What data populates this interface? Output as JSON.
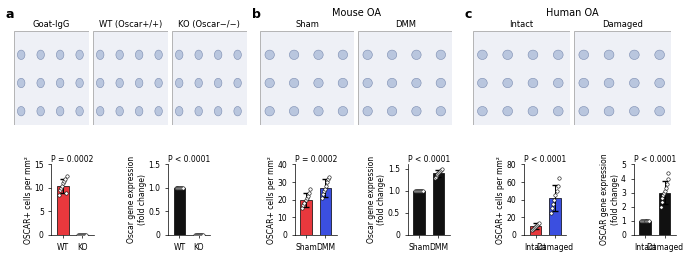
{
  "panels": [
    {
      "label": "a",
      "images": [
        "Goat-IgG",
        "WT (Oscar+/+)",
        "KO (Oscar−/−)"
      ]
    },
    {
      "label": "b",
      "title": "Mouse OA",
      "images": [
        "Sham",
        "DMM"
      ]
    },
    {
      "label": "c",
      "title": "Human OA",
      "images": [
        "Intact",
        "Damaged"
      ]
    }
  ],
  "chart_data": [
    {
      "type": "bar",
      "title": "P = 0.0002",
      "ylabel": "OSCAR+ cells per mm²",
      "categories": [
        "WT",
        "KO"
      ],
      "values": [
        10.5,
        0
      ],
      "errors": [
        1.5,
        0
      ],
      "points": [
        [
          8.5,
          9.5,
          10,
          10.5,
          11,
          11.5,
          12,
          9,
          12.5
        ],
        [
          0,
          0,
          0,
          0,
          0,
          0,
          0,
          0,
          0
        ]
      ],
      "colors": [
        "#e8383d",
        "#e8383d"
      ],
      "ylim": [
        0,
        15
      ],
      "yticks": [
        0,
        5,
        10,
        15
      ]
    },
    {
      "type": "bar",
      "title": "P < 0.0001",
      "ylabel": "Oscar gene expression\n(fold change)",
      "categories": [
        "WT",
        "KO"
      ],
      "values": [
        1.0,
        0.0
      ],
      "errors": [
        0.01,
        0.01
      ],
      "points": [
        [
          1.0,
          1.0,
          1.0,
          1.0,
          1.0,
          1.0,
          1.0,
          1.0,
          1.0
        ],
        [
          0.0,
          0.0,
          0.0,
          0.0,
          0.0,
          0.0,
          0.0,
          0.0,
          0.0
        ]
      ],
      "colors": [
        "#111111",
        "#111111"
      ],
      "ylim": [
        0,
        1.5
      ],
      "yticks": [
        0,
        0.5,
        {
          "value": 1.0,
          "label": "1.0"
        },
        1.5
      ]
    },
    {
      "type": "bar",
      "title": "P = 0.0002",
      "ylabel": "OSCAR+ cells per mm²",
      "categories": [
        "Sham",
        "DMM"
      ],
      "values": [
        20,
        26.5
      ],
      "errors": [
        4,
        5
      ],
      "points": [
        [
          15,
          17,
          18,
          20,
          21,
          22,
          24,
          26
        ],
        [
          21,
          23,
          25,
          26,
          28,
          30,
          32,
          33
        ]
      ],
      "colors": [
        "#e8383d",
        "#3b4fe0"
      ],
      "ylim": [
        0,
        40
      ],
      "yticks": [
        0,
        10,
        20,
        30,
        40
      ]
    },
    {
      "type": "bar",
      "title": "P < 0.0001",
      "ylabel": "Oscar gene expression\n(fold change)",
      "categories": [
        "Sham",
        "DMM"
      ],
      "values": [
        1.0,
        1.4
      ],
      "errors": [
        0.01,
        0.08
      ],
      "points": [
        [
          1.0,
          1.0,
          1.0,
          1.0,
          1.0,
          1.0,
          1.0,
          1.0,
          1.0
        ],
        [
          1.3,
          1.32,
          1.35,
          1.38,
          1.4,
          1.42,
          1.45,
          1.48,
          1.5
        ]
      ],
      "colors": [
        "#111111",
        "#111111"
      ],
      "ylim": [
        0,
        1.6
      ],
      "yticks": [
        0,
        0.5,
        {
          "value": 1.0,
          "label": "1.0"
        },
        1.5
      ]
    },
    {
      "type": "bar",
      "title": "P < 0.0001",
      "ylabel": "OSCAR+ cells per mm²",
      "categories": [
        "Intact",
        "Damaged"
      ],
      "values": [
        10,
        42
      ],
      "errors": [
        3,
        15
      ],
      "points": [
        [
          6,
          7,
          8,
          9,
          10,
          11,
          12,
          14
        ],
        [
          25,
          30,
          35,
          40,
          45,
          50,
          55,
          65
        ]
      ],
      "colors": [
        "#e8383d",
        "#3b4fe0"
      ],
      "ylim": [
        0,
        80
      ],
      "yticks": [
        0,
        20,
        40,
        60,
        80
      ]
    },
    {
      "type": "bar",
      "title": "P < 0.0001",
      "ylabel": "OSCAR gene expression\n(fold change)",
      "categories": [
        "Intact",
        "Damaged"
      ],
      "values": [
        1,
        3
      ],
      "errors": [
        0.02,
        0.8
      ],
      "points": [
        [
          1,
          1,
          1,
          1,
          1,
          1,
          1,
          1,
          1,
          1
        ],
        [
          2.0,
          2.3,
          2.6,
          2.8,
          3.0,
          3.1,
          3.3,
          3.6,
          4.0,
          4.4
        ]
      ],
      "colors": [
        "#111111",
        "#111111"
      ],
      "ylim": [
        0,
        5
      ],
      "yticks": [
        0,
        1,
        2,
        3,
        4,
        5
      ]
    }
  ]
}
